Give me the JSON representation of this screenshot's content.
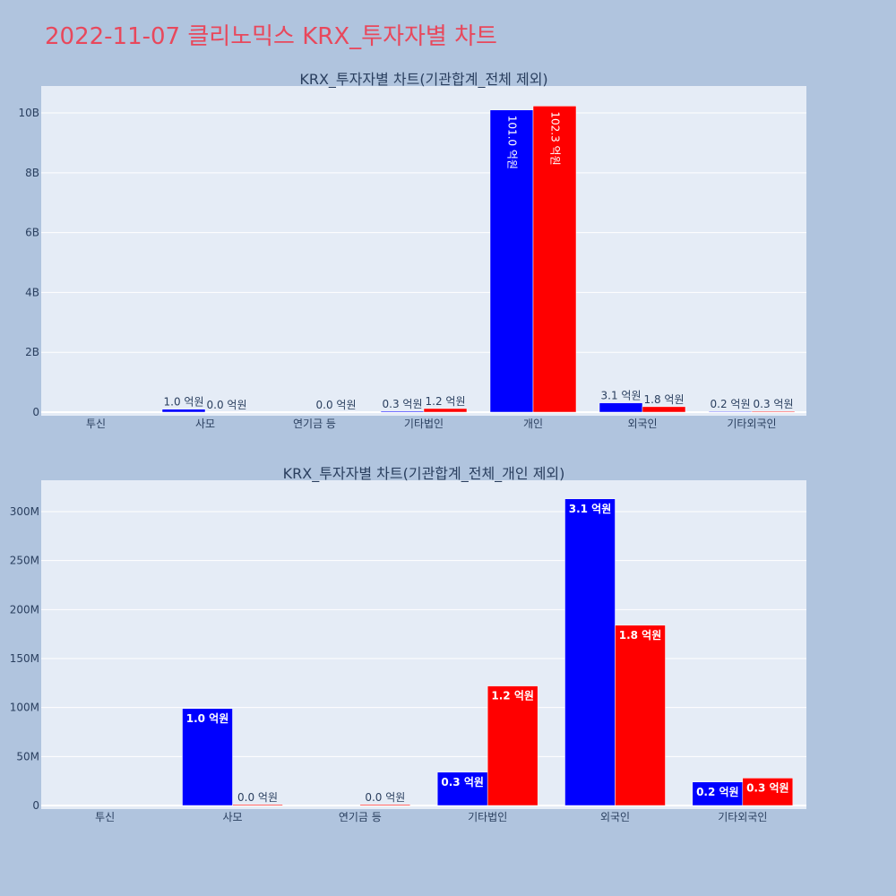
{
  "page": {
    "title": "2022-11-07 클리노믹스 KRX_투자자별 차트",
    "title_color": "#e8485c",
    "background": "#b0c4de",
    "plot_background": "#e5ecf6",
    "label_color": "#2a3f5f"
  },
  "chart_data": [
    {
      "type": "bar",
      "title": "KRX_투자자별 차트(기관합계_전체 제외)",
      "categories": [
        "투신",
        "사모",
        "연기금 등",
        "기타법인",
        "개인",
        "외국인",
        "기타외국인"
      ],
      "ylim": [
        0,
        10900000000
      ],
      "yticks": [
        0,
        2000000000,
        4000000000,
        6000000000,
        8000000000,
        10000000000
      ],
      "yticklabels": [
        "0",
        "2B",
        "4B",
        "6B",
        "8B",
        "10B"
      ],
      "grid": true,
      "label_position": "outside",
      "series": [
        {
          "color": "#0000ff",
          "values": [
            0,
            99000000,
            0,
            32000000,
            10100000000,
            310000000,
            24000000
          ],
          "labels": [
            "",
            "1.0 억원",
            "",
            "0.3 억원",
            "101.0 억원",
            "3.1 억원",
            "0.2 억원"
          ]
        },
        {
          "color": "#ff0000",
          "values": [
            0,
            1000000,
            1000000,
            121000000,
            10230000000,
            183000000,
            28000000
          ],
          "labels": [
            "",
            "0.0 억원",
            "0.0 억원",
            "1.2 억원",
            "102.3 억원",
            "1.8 억원",
            "0.3 억원"
          ]
        }
      ]
    },
    {
      "type": "bar",
      "title": "KRX_투자자별 차트(기관합계_전체_개인 제외)",
      "categories": [
        "투신",
        "사모",
        "연기금 등",
        "기타법인",
        "외국인",
        "기타외국인"
      ],
      "ylim": [
        0,
        332000000
      ],
      "yticks": [
        0,
        50000000,
        100000000,
        150000000,
        200000000,
        250000000,
        300000000
      ],
      "yticklabels": [
        "0",
        "50M",
        "100M",
        "150M",
        "200M",
        "250M",
        "300M"
      ],
      "grid": true,
      "label_position": "inside",
      "series": [
        {
          "color": "#0000ff",
          "values": [
            0,
            99000000,
            0,
            34000000,
            313000000,
            24000000
          ],
          "labels": [
            "",
            "1.0 억원",
            "",
            "0.3 억원",
            "3.1 억원",
            "0.2 억원"
          ]
        },
        {
          "color": "#ff0000",
          "values": [
            0,
            1000000,
            1000000,
            122000000,
            184000000,
            28000000
          ],
          "labels": [
            "",
            "0.0 억원",
            "0.0 억원",
            "1.2 억원",
            "1.8 억원",
            "0.3 억원"
          ]
        }
      ]
    }
  ]
}
